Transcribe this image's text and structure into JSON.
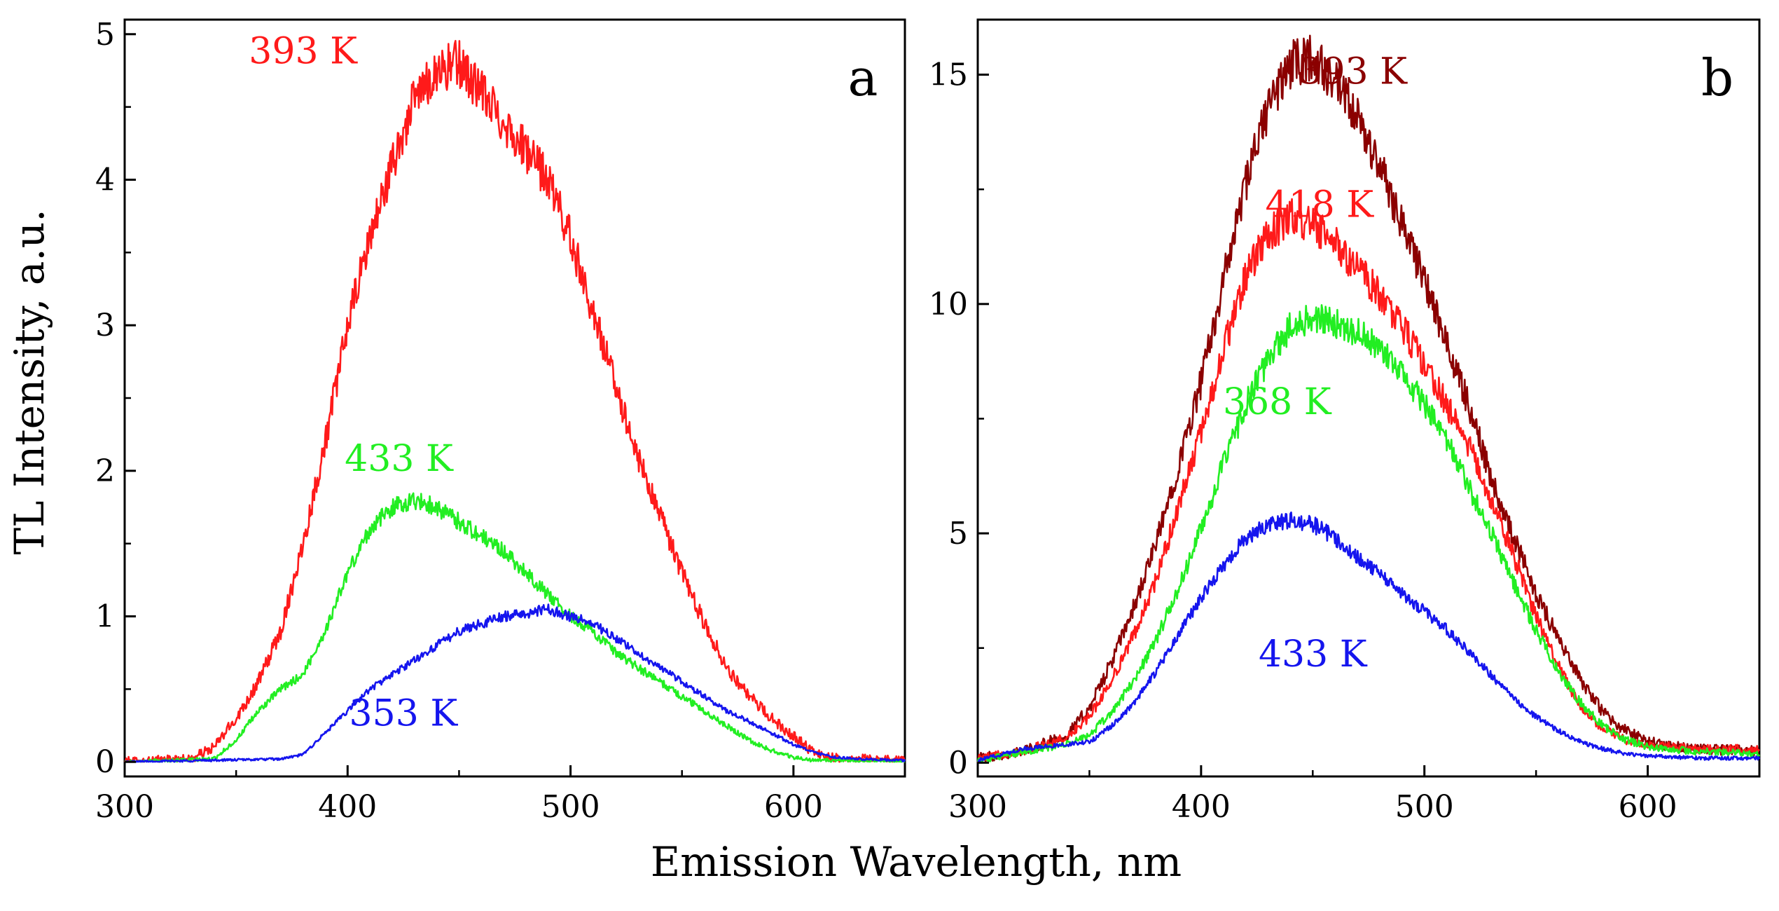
{
  "figure": {
    "shared_xlabel": "Emission Wavelength, nm",
    "shared_ylabel": "TL Intensity, a.u."
  },
  "chart_data": [
    {
      "type": "line",
      "panel": "a",
      "xlabel": "Emission Wavelength, nm",
      "ylabel": "TL Intensity, a.u.",
      "xlim": [
        300,
        650
      ],
      "ylim": [
        -0.1,
        5.1
      ],
      "xticks": [
        300,
        400,
        500,
        600
      ],
      "yticks": [
        0,
        1,
        2,
        3,
        4,
        5
      ],
      "grid": false,
      "series": [
        {
          "name": "393 K",
          "color": "#ff1a1a",
          "x": [
            300,
            330,
            340,
            350,
            360,
            370,
            380,
            390,
            400,
            410,
            420,
            430,
            440,
            450,
            460,
            470,
            480,
            490,
            500,
            510,
            520,
            530,
            540,
            550,
            560,
            570,
            580,
            590,
            600,
            610,
            620,
            630,
            640,
            650
          ],
          "y": [
            0,
            0.02,
            0.1,
            0.3,
            0.55,
            0.9,
            1.5,
            2.2,
            3.0,
            3.6,
            4.1,
            4.55,
            4.75,
            4.8,
            4.6,
            4.4,
            4.2,
            4.0,
            3.6,
            3.1,
            2.6,
            2.1,
            1.7,
            1.3,
            0.95,
            0.65,
            0.45,
            0.3,
            0.18,
            0.05,
            0.02,
            0.02,
            0.01,
            0.01
          ]
        },
        {
          "name": "433 K",
          "color": "#22ee22",
          "x": [
            300,
            340,
            350,
            360,
            370,
            380,
            390,
            400,
            410,
            420,
            430,
            440,
            450,
            460,
            470,
            480,
            490,
            500,
            510,
            520,
            530,
            540,
            550,
            560,
            570,
            580,
            590,
            600,
            610,
            620,
            650
          ],
          "y": [
            0,
            0.02,
            0.15,
            0.35,
            0.5,
            0.6,
            0.9,
            1.3,
            1.6,
            1.75,
            1.8,
            1.75,
            1.65,
            1.55,
            1.45,
            1.3,
            1.15,
            1.0,
            0.9,
            0.75,
            0.65,
            0.55,
            0.45,
            0.35,
            0.25,
            0.15,
            0.08,
            0.03,
            0.01,
            0.01,
            0.0
          ]
        },
        {
          "name": "353 K",
          "color": "#1515ee",
          "x": [
            300,
            370,
            380,
            390,
            400,
            410,
            420,
            430,
            440,
            450,
            460,
            470,
            480,
            490,
            500,
            510,
            520,
            530,
            540,
            550,
            560,
            570,
            580,
            590,
            600,
            610,
            620,
            630,
            650
          ],
          "y": [
            0,
            0.02,
            0.05,
            0.2,
            0.35,
            0.5,
            0.6,
            0.7,
            0.8,
            0.9,
            0.95,
            1.0,
            1.02,
            1.05,
            1.0,
            0.95,
            0.85,
            0.75,
            0.65,
            0.55,
            0.45,
            0.35,
            0.28,
            0.2,
            0.12,
            0.06,
            0.03,
            0.02,
            0.01
          ]
        }
      ],
      "labels": [
        {
          "text": "393 K",
          "color": "#ff1a1a",
          "at_x": 380,
          "at_y": 4.8
        },
        {
          "text": "433 K",
          "color": "#22ee22",
          "at_x": 423,
          "at_y": 2.0
        },
        {
          "text": "353 K",
          "color": "#1515ee",
          "at_x": 425,
          "at_y": 0.25
        }
      ],
      "panel_letter": "a"
    },
    {
      "type": "line",
      "panel": "b",
      "xlabel": "Emission Wavelength, nm",
      "ylabel": "",
      "xlim": [
        300,
        650
      ],
      "ylim": [
        -0.3,
        16.2
      ],
      "xticks": [
        300,
        400,
        500,
        600
      ],
      "yticks": [
        0,
        5,
        10,
        15
      ],
      "grid": false,
      "series": [
        {
          "name": "393 K",
          "color": "#8b0000",
          "x": [
            300,
            320,
            340,
            350,
            360,
            370,
            380,
            390,
            400,
            410,
            420,
            430,
            440,
            450,
            460,
            470,
            480,
            490,
            500,
            510,
            520,
            530,
            540,
            550,
            560,
            570,
            580,
            590,
            600,
            620,
            650
          ],
          "y": [
            0.1,
            0.25,
            0.6,
            1.2,
            2.2,
            3.4,
            4.8,
            6.5,
            8.3,
            10.5,
            12.6,
            14.3,
            15.2,
            15.4,
            14.8,
            14.0,
            13.0,
            11.8,
            10.5,
            9.1,
            7.8,
            6.2,
            4.9,
            3.7,
            2.7,
            1.8,
            1.1,
            0.7,
            0.45,
            0.3,
            0.25
          ]
        },
        {
          "name": "418 K",
          "color": "#ff1a1a",
          "x": [
            300,
            320,
            340,
            350,
            360,
            370,
            380,
            390,
            400,
            410,
            420,
            430,
            440,
            450,
            460,
            470,
            480,
            490,
            500,
            510,
            520,
            530,
            540,
            550,
            560,
            570,
            580,
            590,
            600,
            620,
            650
          ],
          "y": [
            0.1,
            0.25,
            0.55,
            1.0,
            1.8,
            2.8,
            4.0,
            5.6,
            7.2,
            9.0,
            10.6,
            11.5,
            11.9,
            11.7,
            11.3,
            10.8,
            10.2,
            9.5,
            8.7,
            7.8,
            6.9,
            5.7,
            4.5,
            3.2,
            2.1,
            1.2,
            0.75,
            0.5,
            0.4,
            0.3,
            0.3
          ]
        },
        {
          "name": "368 K",
          "color": "#22ee22",
          "x": [
            300,
            340,
            350,
            360,
            370,
            380,
            390,
            400,
            410,
            420,
            430,
            440,
            450,
            460,
            470,
            480,
            490,
            500,
            510,
            520,
            530,
            540,
            550,
            560,
            570,
            580,
            590,
            600,
            620,
            650
          ],
          "y": [
            0.05,
            0.4,
            0.6,
            1.1,
            1.8,
            2.7,
            3.8,
            5.1,
            6.5,
            7.8,
            8.8,
            9.5,
            9.7,
            9.6,
            9.4,
            9.0,
            8.5,
            7.8,
            7.0,
            6.0,
            5.0,
            3.9,
            2.9,
            2.0,
            1.3,
            0.8,
            0.5,
            0.35,
            0.25,
            0.2
          ]
        },
        {
          "name": "433 K",
          "color": "#1515ee",
          "x": [
            300,
            320,
            340,
            350,
            360,
            370,
            380,
            390,
            400,
            410,
            420,
            430,
            440,
            450,
            460,
            470,
            480,
            490,
            500,
            510,
            520,
            530,
            540,
            550,
            560,
            570,
            580,
            590,
            600,
            620,
            650
          ],
          "y": [
            0.05,
            0.3,
            0.4,
            0.45,
            0.8,
            1.3,
            2.0,
            2.8,
            3.6,
            4.3,
            4.9,
            5.2,
            5.3,
            5.2,
            4.9,
            4.5,
            4.1,
            3.7,
            3.3,
            2.9,
            2.4,
            1.9,
            1.4,
            1.0,
            0.7,
            0.45,
            0.3,
            0.2,
            0.15,
            0.1,
            0.1
          ]
        }
      ],
      "labels": [
        {
          "text": "393 K",
          "color": "#8b0000",
          "at_x": 468,
          "at_y": 14.8
        },
        {
          "text": "418 K",
          "color": "#ff1a1a",
          "at_x": 453,
          "at_y": 11.9
        },
        {
          "text": "368 K",
          "color": "#22ee22",
          "at_x": 434,
          "at_y": 7.6
        },
        {
          "text": "433 K",
          "color": "#1515ee",
          "at_x": 450,
          "at_y": 2.1
        }
      ],
      "panel_letter": "b"
    }
  ]
}
